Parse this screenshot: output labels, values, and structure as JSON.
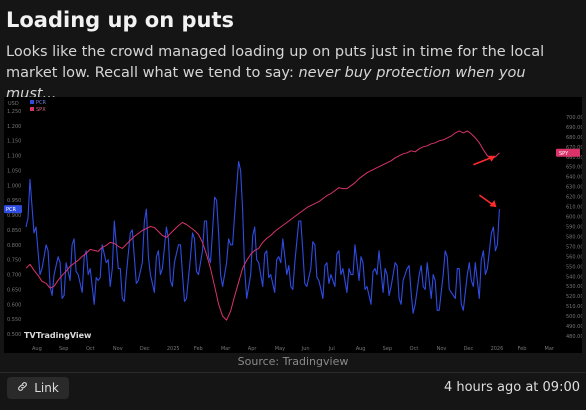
{
  "post": {
    "title": "Loading up on puts",
    "description_plain": "Looks like the crowd managed loading up on puts just in time for the local market low. Recall what we tend to say: ",
    "description_italic": "never buy protection when you must...",
    "source": "Source: Tradingview",
    "link_label": "Link",
    "timestamp": "4 hours ago at 09:00"
  },
  "icons": {
    "link": "link-icon"
  },
  "colors": {
    "background": "#151515",
    "chart_bg": "#000000",
    "spx": "#d9336a",
    "ratio": "#2f4ce0",
    "arrow": "#ff2a2a"
  },
  "chart_data": {
    "type": "line",
    "watermark": "TradingView",
    "currency_label": "USD",
    "legend": [
      "SPX",
      "PCR"
    ],
    "x_ticks": [
      "Aug",
      "Sep",
      "Oct",
      "Nov",
      "Dec",
      "2025",
      "Feb",
      "Mar",
      "Apr",
      "May",
      "Jun",
      "Jul",
      "Aug",
      "Sep",
      "Oct",
      "Nov",
      "Dec",
      "2026",
      "Feb",
      "Mar"
    ],
    "y_left_ticks": [
      1.25,
      1.2,
      1.15,
      1.1,
      1.05,
      1.0,
      0.95,
      0.9,
      0.85,
      0.8,
      0.75,
      0.7,
      0.65,
      0.6,
      0.55,
      0.5
    ],
    "y_left_range": [
      0.47,
      1.27
    ],
    "y_right_ticks": [
      700,
      690,
      680,
      670,
      660,
      650,
      640,
      630,
      620,
      610,
      600,
      590,
      580,
      570,
      560,
      550,
      540,
      530,
      520,
      510,
      500,
      490,
      480
    ],
    "y_right_range": [
      473,
      712
    ],
    "spx_last_label": "SPY",
    "ratio_last_label": "PCR",
    "grid": false,
    "series": [
      {
        "name": "SPX",
        "axis": "right",
        "x": [
          0,
          1,
          2,
          3,
          4,
          5,
          6,
          7,
          8,
          9,
          10,
          11,
          12,
          13,
          14,
          15,
          16,
          17,
          18,
          19,
          20,
          21,
          22,
          23,
          24,
          25,
          26,
          27,
          28,
          29,
          30,
          31,
          32,
          33,
          34,
          35,
          36,
          37,
          38,
          39,
          40,
          41,
          42,
          43,
          44,
          45,
          46,
          47,
          48,
          49,
          50,
          51,
          52,
          53,
          54,
          55,
          56,
          57,
          58,
          59,
          60,
          61,
          62,
          63,
          64,
          65,
          66,
          67,
          68,
          69,
          70,
          71,
          72,
          73,
          74,
          75,
          76,
          77,
          78,
          79,
          80,
          81,
          82,
          83,
          84,
          85,
          86,
          87,
          88,
          89,
          90,
          91,
          92,
          93,
          94,
          95,
          96,
          97,
          98,
          99,
          100,
          101,
          102,
          103,
          104,
          105,
          106,
          107,
          108,
          109,
          110,
          111,
          112,
          113,
          114,
          115,
          116,
          117,
          118
        ],
        "values": [
          548,
          552,
          546,
          541,
          535,
          533,
          528,
          530,
          536,
          541,
          545,
          550,
          553,
          556,
          560,
          563,
          567,
          566,
          565,
          569,
          571,
          574,
          573,
          570,
          568,
          572,
          576,
          580,
          583,
          586,
          588,
          590,
          589,
          585,
          581,
          579,
          583,
          587,
          591,
          594,
          592,
          589,
          586,
          582,
          574,
          562,
          548,
          530,
          512,
          500,
          496,
          505,
          520,
          534,
          548,
          556,
          562,
          566,
          568,
          574,
          578,
          581,
          585,
          588,
          591,
          594,
          597,
          600,
          603,
          606,
          609,
          611,
          613,
          615,
          618,
          621,
          623,
          626,
          629,
          628,
          628,
          631,
          634,
          638,
          641,
          644,
          646,
          648,
          650,
          652,
          654,
          656,
          659,
          661,
          663,
          664,
          666,
          665,
          668,
          670,
          671,
          673,
          674,
          676,
          677,
          679,
          681,
          684,
          686,
          684,
          686,
          683,
          679,
          674,
          667,
          661,
          658,
          660,
          664
        ]
      },
      {
        "name": "PCR",
        "axis": "left",
        "x": [
          0,
          1,
          2,
          3,
          4,
          5,
          6,
          7,
          8,
          9,
          10,
          11,
          12,
          13,
          14,
          15,
          16,
          17,
          18,
          19,
          20,
          21,
          22,
          23,
          24,
          25,
          26,
          27,
          28,
          29,
          30,
          31,
          32,
          33,
          34,
          35,
          36,
          37,
          38,
          39,
          40,
          41,
          42,
          43,
          44,
          45,
          46,
          47,
          48,
          49,
          50,
          51,
          52,
          53,
          54,
          55,
          56,
          57,
          58,
          59,
          60,
          61,
          62,
          63,
          64,
          65,
          66,
          67,
          68,
          69,
          70,
          71,
          72,
          73,
          74,
          75,
          76,
          77,
          78,
          79,
          80,
          81,
          82,
          83,
          84,
          85,
          86,
          87,
          88,
          89,
          90,
          91,
          92,
          93,
          94,
          95,
          96,
          97,
          98,
          99,
          100,
          101,
          102,
          103,
          104,
          105,
          106,
          107,
          108,
          109,
          110,
          111,
          112,
          113,
          114,
          115,
          116,
          117,
          118
        ],
        "values": [
          0.86,
          1.02,
          0.84,
          0.78,
          0.72,
          0.8,
          0.66,
          0.7,
          0.76,
          0.62,
          0.74,
          0.68,
          0.82,
          0.7,
          0.64,
          0.78,
          0.72,
          0.6,
          0.68,
          0.8,
          0.74,
          0.66,
          0.88,
          0.72,
          0.62,
          0.7,
          0.84,
          0.76,
          0.68,
          0.74,
          0.92,
          0.7,
          0.64,
          0.78,
          0.72,
          0.86,
          0.68,
          0.74,
          0.8,
          0.7,
          0.62,
          0.76,
          0.82,
          0.7,
          0.78,
          0.88,
          0.74,
          0.96,
          0.84,
          0.66,
          0.74,
          0.8,
          0.9,
          1.08,
          0.92,
          0.62,
          0.7,
          0.86,
          0.74,
          0.66,
          0.78,
          0.7,
          0.64,
          0.76,
          0.82,
          0.7,
          0.66,
          0.74,
          0.88,
          0.78,
          0.66,
          0.72,
          0.8,
          0.68,
          0.62,
          0.74,
          0.7,
          0.66,
          0.78,
          0.72,
          0.64,
          0.7,
          0.8,
          0.68,
          0.74,
          0.66,
          0.6,
          0.72,
          0.78,
          0.64,
          0.7,
          0.66,
          0.74,
          0.62,
          0.68,
          0.72,
          0.64,
          0.6,
          0.7,
          0.66,
          0.74,
          0.62,
          0.68,
          0.58,
          0.7,
          0.76,
          0.64,
          0.62,
          0.72,
          0.58,
          0.7,
          0.68,
          0.74,
          0.62,
          0.78,
          0.72,
          0.84,
          0.78,
          0.92
        ]
      }
    ]
  }
}
